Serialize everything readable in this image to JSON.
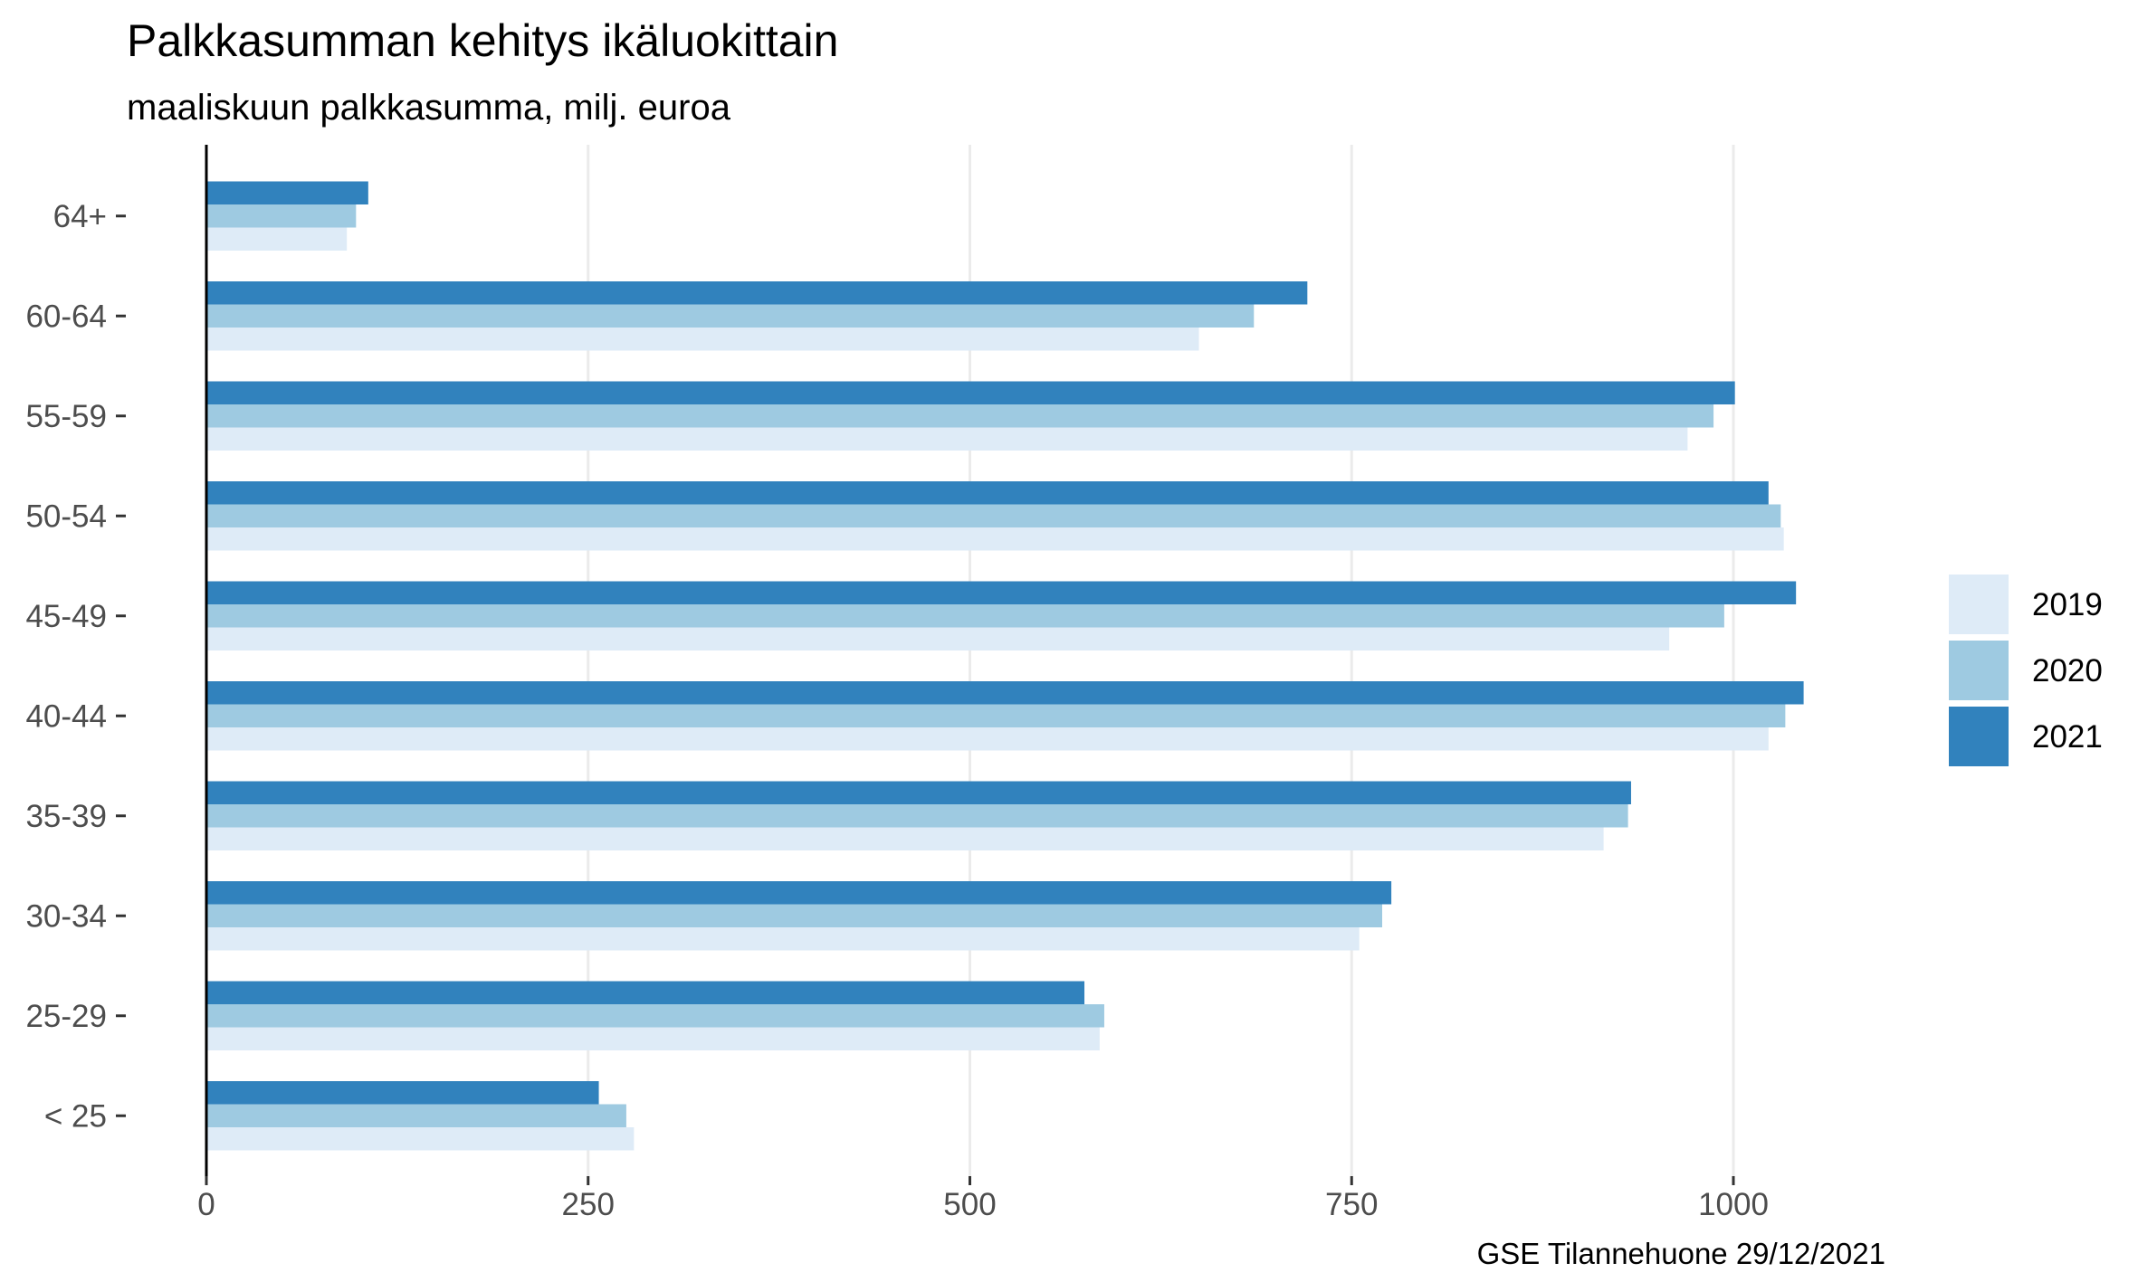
{
  "chart_data": {
    "type": "bar",
    "orientation": "horizontal",
    "title": "Palkkasumman kehitys ikäluokittain",
    "subtitle": "maaliskuun palkkasumma, milj. euroa",
    "caption": "GSE Tilannehuone 29/12/2021",
    "categories": [
      "< 25",
      "25-29",
      "30-34",
      "35-39",
      "40-44",
      "45-49",
      "50-54",
      "55-59",
      "60-64",
      "64+"
    ],
    "series": [
      {
        "name": "2019",
        "color": "#deebf7",
        "values": [
          280,
          585,
          755,
          915,
          1023,
          958,
          1033,
          970,
          650,
          92
        ]
      },
      {
        "name": "2020",
        "color": "#9ecae1",
        "values": [
          275,
          588,
          770,
          931,
          1034,
          994,
          1031,
          987,
          686,
          98
        ]
      },
      {
        "name": "2021",
        "color": "#3182bd",
        "values": [
          257,
          575,
          776,
          933,
          1046,
          1041,
          1023,
          1001,
          721,
          106
        ]
      }
    ],
    "xticks": [
      0,
      250,
      500,
      750,
      1000
    ],
    "xtick_labels": [
      "0",
      "250",
      "500",
      "750",
      "1000"
    ],
    "xlim": [
      0,
      1150
    ],
    "grid": "vertical-major",
    "legend_position": "right"
  }
}
